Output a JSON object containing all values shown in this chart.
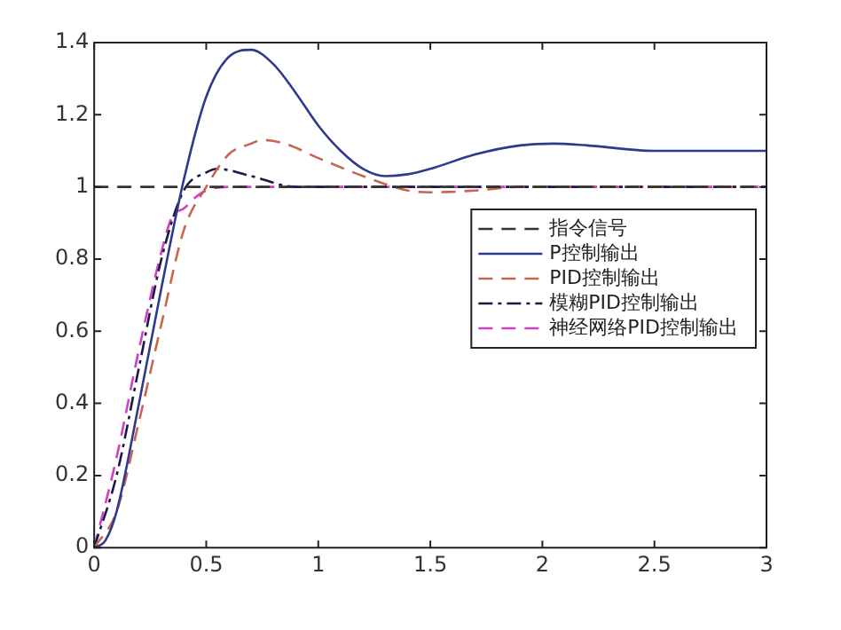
{
  "chart_data": {
    "type": "line",
    "xlim": [
      0,
      3
    ],
    "xticks": [
      0,
      0.5,
      1,
      1.5,
      2,
      2.5,
      3
    ],
    "ylim": [
      0,
      1.4
    ],
    "yticks": [
      0,
      0.2,
      0.4,
      0.6,
      0.8,
      1,
      1.2,
      1.4
    ],
    "grid": false,
    "legend": "top right",
    "marker": "none",
    "series": [
      {
        "name": "指令信号",
        "color": "#333333",
        "line_style": "dashed",
        "x": [
          0,
          3
        ],
        "values": [
          1,
          1
        ]
      },
      {
        "name": "P控制输出",
        "color": "#2e3a8c",
        "line_style": "solid",
        "x": [
          0,
          0.05,
          0.1,
          0.2,
          0.3,
          0.4,
          0.5,
          0.6,
          0.7,
          0.8,
          0.9,
          1.0,
          1.1,
          1.2,
          1.3,
          1.4,
          1.5,
          1.7,
          1.9,
          2.05,
          2.2,
          2.5,
          2.8,
          3
        ],
        "values": [
          0,
          0.02,
          0.1,
          0.4,
          0.72,
          1.02,
          1.25,
          1.36,
          1.38,
          1.34,
          1.26,
          1.17,
          1.1,
          1.05,
          1.03,
          1.035,
          1.05,
          1.09,
          1.115,
          1.12,
          1.115,
          1.1,
          1.1,
          1.1
        ]
      },
      {
        "name": "PID控制输出",
        "color": "#c86450",
        "line_style": "dashed",
        "x": [
          0,
          0.1,
          0.2,
          0.3,
          0.4,
          0.5,
          0.6,
          0.7,
          0.75,
          0.85,
          1.0,
          1.2,
          1.4,
          1.5,
          1.7,
          1.9,
          2.2,
          3
        ],
        "values": [
          0,
          0.1,
          0.35,
          0.62,
          0.88,
          1.0,
          1.09,
          1.12,
          1.13,
          1.12,
          1.08,
          1.03,
          0.99,
          0.985,
          0.99,
          1.0,
          1.0,
          1.0
        ]
      },
      {
        "name": "模糊PID控制输出",
        "color": "#1a1a4a",
        "line_style": "dashdot",
        "x": [
          0,
          0.1,
          0.2,
          0.3,
          0.4,
          0.5,
          0.55,
          0.7,
          0.9,
          1.2,
          3
        ],
        "values": [
          0,
          0.2,
          0.5,
          0.8,
          0.99,
          1.04,
          1.05,
          1.03,
          1.0,
          1.0,
          1.0
        ]
      },
      {
        "name": "神经网络PID控制输出",
        "color": "#d040c0",
        "line_style": "dashed",
        "x": [
          0,
          0.1,
          0.2,
          0.3,
          0.35,
          0.4,
          0.45,
          0.5,
          0.6,
          3
        ],
        "values": [
          0,
          0.25,
          0.55,
          0.82,
          0.92,
          0.94,
          0.97,
          0.99,
          1.0,
          1.0
        ]
      }
    ]
  }
}
